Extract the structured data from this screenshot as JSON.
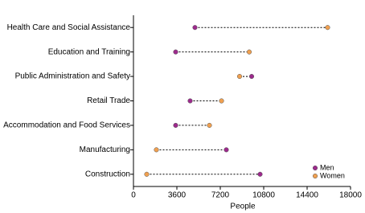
{
  "chart_data": {
    "type": "dot",
    "categories": [
      "Health Care and Social Assistance",
      "Education and Training",
      "Public Administration and Safety",
      "Retail Trade",
      "Accommodation and Food Services",
      "Manufacturing",
      "Construction"
    ],
    "series": [
      {
        "name": "Men",
        "color": "#9c2a8c",
        "values": [
          5100,
          3500,
          9800,
          4700,
          3500,
          7700,
          10500
        ]
      },
      {
        "name": "Women",
        "color": "#f0a050",
        "values": [
          16100,
          9600,
          8800,
          7300,
          6300,
          1900,
          1100
        ]
      }
    ],
    "xlim": [
      0,
      18000
    ],
    "xticks": [
      0,
      3600,
      7200,
      10800,
      14400,
      18000
    ],
    "x_label": "People",
    "legend": "bottom-right"
  }
}
